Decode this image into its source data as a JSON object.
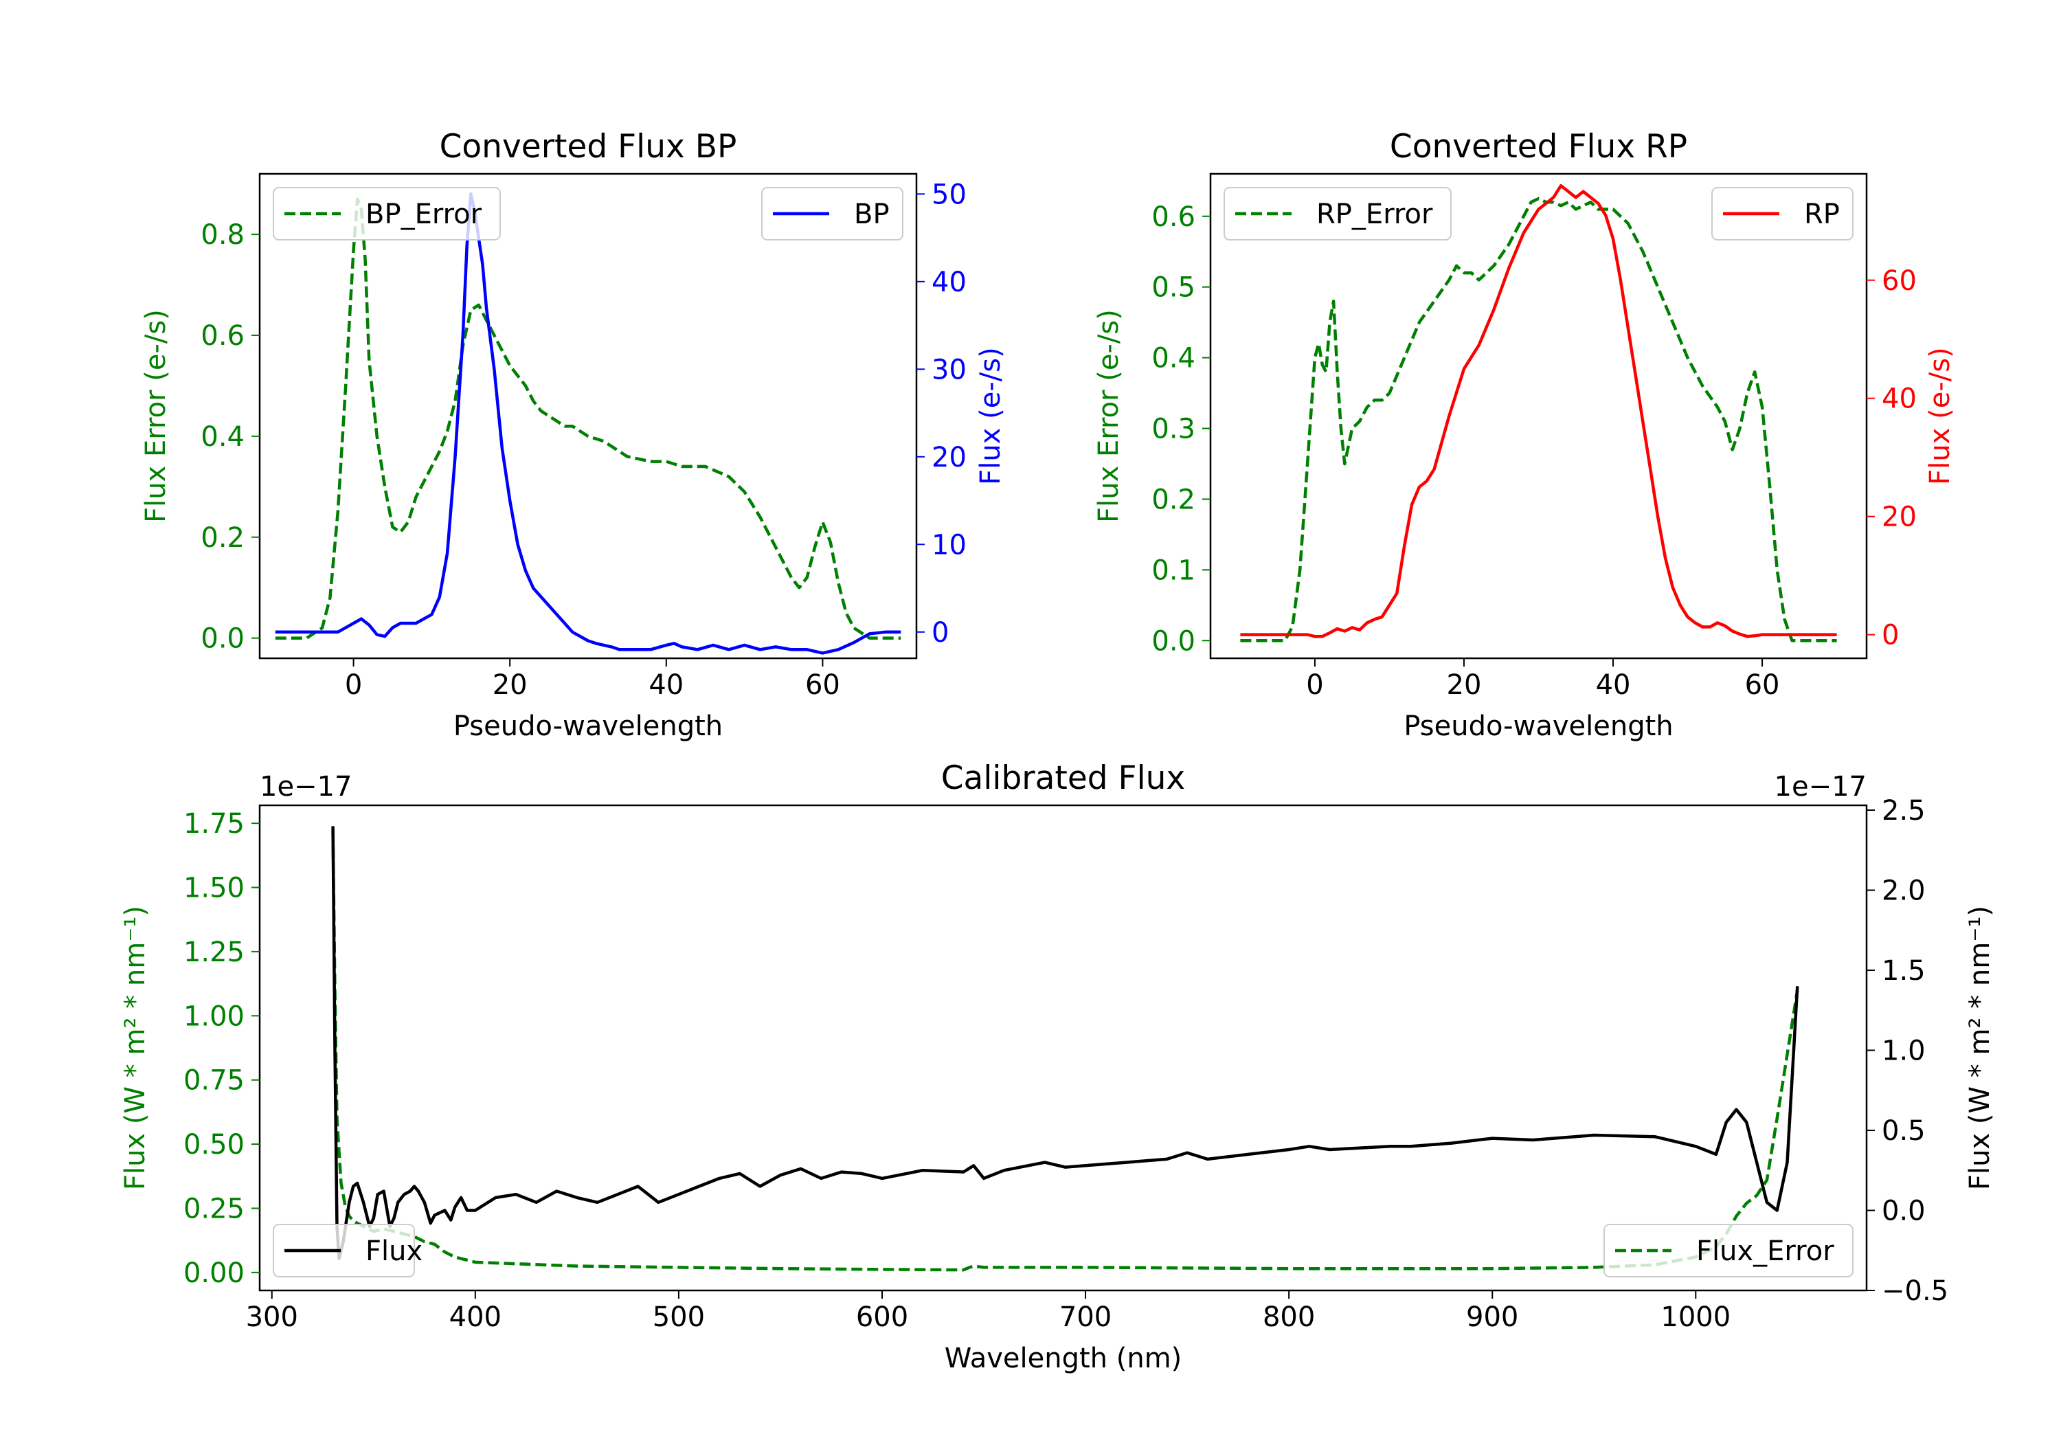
{
  "chart_data": [
    {
      "id": "bp",
      "type": "line",
      "title": "Converted Flux BP",
      "xlabel": "Pseudo-wavelength",
      "ylabel_left": "Flux Error (e-/s)",
      "ylabel_right": "Flux (e-/s)",
      "xlim": [
        -12,
        72
      ],
      "ylim_left": [
        -0.04,
        0.92
      ],
      "ylim_right": [
        -3,
        52.3
      ],
      "xticks": [
        0,
        20,
        40,
        60
      ],
      "yticks_left": [
        0.0,
        0.2,
        0.4,
        0.6,
        0.8
      ],
      "yticks_right": [
        0,
        10,
        20,
        30,
        40,
        50
      ],
      "ytick_labels_left": [
        "0.0",
        "0.2",
        "0.4",
        "0.6",
        "0.8"
      ],
      "ytick_labels_right": [
        "0",
        "10",
        "20",
        "30",
        "40",
        "50"
      ],
      "left_axis_color": "#008000",
      "right_axis_color": "#0000ff",
      "series": [
        {
          "name": "BP_Error",
          "axis": "left",
          "color": "#008000",
          "style": "dashed",
          "x": [
            -10,
            -8,
            -6,
            -4,
            -3,
            -2,
            -1,
            0,
            0.5,
            1,
            1.5,
            2,
            3,
            4,
            5,
            6,
            7,
            8,
            9,
            10,
            11,
            12,
            13,
            14,
            15,
            16,
            17,
            18,
            19,
            20,
            21,
            22,
            23,
            24,
            25,
            26,
            27,
            28,
            30,
            32,
            35,
            38,
            40,
            42,
            45,
            48,
            50,
            52,
            54,
            56,
            57,
            58,
            59,
            60,
            61,
            62,
            63,
            64,
            65,
            66,
            70
          ],
          "y": [
            0,
            0,
            0,
            0.02,
            0.08,
            0.25,
            0.5,
            0.77,
            0.87,
            0.85,
            0.75,
            0.55,
            0.4,
            0.3,
            0.22,
            0.21,
            0.23,
            0.28,
            0.31,
            0.34,
            0.37,
            0.41,
            0.47,
            0.58,
            0.65,
            0.66,
            0.63,
            0.6,
            0.57,
            0.54,
            0.52,
            0.5,
            0.47,
            0.45,
            0.44,
            0.43,
            0.42,
            0.42,
            0.4,
            0.39,
            0.36,
            0.35,
            0.35,
            0.34,
            0.34,
            0.32,
            0.29,
            0.24,
            0.18,
            0.12,
            0.1,
            0.12,
            0.18,
            0.23,
            0.19,
            0.11,
            0.05,
            0.02,
            0.01,
            0,
            0
          ]
        },
        {
          "name": "BP",
          "axis": "right",
          "color": "#0000ff",
          "style": "solid",
          "x": [
            -10,
            -5,
            -2,
            0,
            1,
            2,
            3,
            4,
            5,
            6,
            7,
            8,
            9,
            10,
            11,
            12,
            13,
            14,
            14.5,
            15,
            15.5,
            16,
            16.5,
            17,
            18,
            19,
            20,
            21,
            22,
            23,
            24,
            25,
            26,
            27,
            28,
            29,
            30,
            31,
            32,
            33,
            34,
            35,
            36,
            38,
            40,
            41,
            42,
            44,
            46,
            48,
            50,
            52,
            54,
            56,
            58,
            60,
            62,
            64,
            66,
            68,
            70
          ],
          "y": [
            0,
            0,
            0,
            1,
            1.5,
            0.8,
            -0.3,
            -0.5,
            0.5,
            1,
            1,
            1,
            1.5,
            2,
            4,
            9,
            20,
            34,
            44,
            50,
            48,
            45,
            42,
            37,
            30,
            21,
            15,
            10,
            7,
            5,
            4,
            3,
            2,
            1,
            0,
            -0.5,
            -1,
            -1.3,
            -1.5,
            -1.7,
            -2,
            -2,
            -2,
            -2,
            -1.5,
            -1.3,
            -1.7,
            -2,
            -1.5,
            -2,
            -1.5,
            -2,
            -1.7,
            -2,
            -2,
            -2.4,
            -2,
            -1.2,
            -0.2,
            0,
            0
          ]
        }
      ],
      "legend": [
        {
          "label": "BP_Error",
          "position": "upper-left"
        },
        {
          "label": "BP",
          "position": "upper-right"
        }
      ]
    },
    {
      "id": "rp",
      "type": "line",
      "title": "Converted Flux RP",
      "xlabel": "Pseudo-wavelength",
      "ylabel_left": "Flux Error (e-/s)",
      "ylabel_right": "Flux (e-/s)",
      "xlim": [
        -14,
        74
      ],
      "ylim_left": [
        -0.025,
        0.66
      ],
      "ylim_right": [
        -4,
        78
      ],
      "xticks": [
        0,
        20,
        40,
        60
      ],
      "yticks_left": [
        0.0,
        0.1,
        0.2,
        0.3,
        0.4,
        0.5,
        0.6
      ],
      "yticks_right": [
        0,
        20,
        40,
        60
      ],
      "ytick_labels_left": [
        "0.0",
        "0.1",
        "0.2",
        "0.3",
        "0.4",
        "0.5",
        "0.6"
      ],
      "ytick_labels_right": [
        "0",
        "20",
        "40",
        "60"
      ],
      "left_axis_color": "#008000",
      "right_axis_color": "#ff0000",
      "series": [
        {
          "name": "RP_Error",
          "axis": "left",
          "color": "#008000",
          "style": "dashed",
          "x": [
            -10,
            -6,
            -4,
            -3,
            -2,
            -1,
            0,
            0.5,
            1,
            1.5,
            2,
            2.5,
            3,
            3.5,
            4,
            5,
            6,
            7,
            8,
            9,
            10,
            12,
            14,
            16,
            18,
            19,
            20,
            21,
            22,
            24,
            26,
            28,
            29,
            30,
            31,
            32,
            33,
            34,
            35,
            36,
            37,
            38,
            40,
            42,
            44,
            46,
            48,
            50,
            52,
            54,
            55,
            56,
            57,
            58,
            59,
            60,
            61,
            62,
            63,
            64,
            65,
            70
          ],
          "y": [
            0,
            0,
            0,
            0.02,
            0.1,
            0.25,
            0.4,
            0.42,
            0.39,
            0.38,
            0.45,
            0.48,
            0.38,
            0.3,
            0.25,
            0.3,
            0.31,
            0.33,
            0.34,
            0.34,
            0.35,
            0.4,
            0.45,
            0.48,
            0.51,
            0.53,
            0.52,
            0.52,
            0.51,
            0.53,
            0.56,
            0.6,
            0.62,
            0.625,
            0.62,
            0.62,
            0.615,
            0.62,
            0.61,
            0.615,
            0.62,
            0.61,
            0.61,
            0.59,
            0.55,
            0.5,
            0.45,
            0.4,
            0.36,
            0.33,
            0.31,
            0.27,
            0.3,
            0.35,
            0.38,
            0.33,
            0.22,
            0.1,
            0.03,
            0,
            0,
            0
          ]
        },
        {
          "name": "RP",
          "axis": "right",
          "color": "#ff0000",
          "style": "solid",
          "x": [
            -10,
            -4,
            -1,
            0,
            1,
            2,
            3,
            4,
            5,
            6,
            7,
            8,
            9,
            10,
            11,
            12,
            13,
            14,
            15,
            16,
            18,
            20,
            22,
            24,
            26,
            28,
            30,
            32,
            33,
            34,
            35,
            36,
            37,
            38,
            39,
            40,
            41,
            42,
            43,
            44,
            45,
            46,
            47,
            48,
            49,
            50,
            51,
            52,
            53,
            54,
            55,
            56,
            57,
            58,
            59,
            60,
            61,
            62,
            64,
            66,
            70
          ],
          "y": [
            0,
            0,
            0,
            -0.3,
            -0.3,
            0.3,
            1,
            0.6,
            1.2,
            0.8,
            2,
            2.6,
            3,
            5,
            7,
            15,
            22,
            25,
            26,
            28,
            37,
            45,
            49,
            55,
            62,
            68,
            72,
            74,
            76,
            75,
            74,
            75,
            74,
            73,
            71,
            67,
            60,
            52,
            44,
            36,
            28,
            20,
            13,
            8,
            5,
            3,
            2,
            1.3,
            1.3,
            2,
            1.5,
            0.6,
            0.1,
            -0.3,
            -0.2,
            0,
            0,
            0,
            0,
            0,
            0
          ]
        }
      ],
      "legend": [
        {
          "label": "RP_Error",
          "position": "upper-left"
        },
        {
          "label": "RP",
          "position": "upper-right"
        }
      ]
    },
    {
      "id": "cal",
      "type": "line",
      "title": "Calibrated Flux",
      "xlabel": "Wavelength (nm)",
      "ylabel_left": "Flux (W * m² * nm⁻¹)",
      "ylabel_right": "Flux (W * m² * nm⁻¹)",
      "offset_left": "1e−17",
      "offset_right": "1e−17",
      "xlim": [
        294,
        1084
      ],
      "ylim_left": [
        -0.07,
        1.82
      ],
      "ylim_right": [
        -0.5,
        2.53
      ],
      "xticks": [
        300,
        400,
        500,
        600,
        700,
        800,
        900,
        1000
      ],
      "yticks_left": [
        0.0,
        0.25,
        0.5,
        0.75,
        1.0,
        1.25,
        1.5,
        1.75
      ],
      "yticks_right": [
        -0.5,
        0.0,
        0.5,
        1.0,
        1.5,
        2.0,
        2.5
      ],
      "ytick_labels_left": [
        "0.00",
        "0.25",
        "0.50",
        "0.75",
        "1.00",
        "1.25",
        "1.50",
        "1.75"
      ],
      "ytick_labels_right": [
        "−0.5",
        "0.0",
        "0.5",
        "1.0",
        "1.5",
        "2.0",
        "2.5"
      ],
      "left_axis_color": "#008000",
      "right_axis_color": "#000000",
      "series": [
        {
          "name": "Flux_Error",
          "axis": "left",
          "color": "#008000",
          "style": "dashed",
          "x": [
            330,
            331,
            332,
            334,
            336,
            338,
            340,
            345,
            350,
            355,
            360,
            365,
            370,
            375,
            380,
            385,
            390,
            400,
            450,
            500,
            550,
            600,
            640,
            643,
            645,
            650,
            700,
            800,
            900,
            950,
            980,
            1000,
            1005,
            1010,
            1015,
            1020,
            1025,
            1030,
            1035,
            1040,
            1045,
            1050
          ],
          "y": [
            1.72,
            1.1,
            0.6,
            0.35,
            0.26,
            0.22,
            0.2,
            0.18,
            0.16,
            0.17,
            0.16,
            0.15,
            0.14,
            0.12,
            0.11,
            0.08,
            0.06,
            0.04,
            0.025,
            0.02,
            0.015,
            0.012,
            0.01,
            0.02,
            0.025,
            0.02,
            0.02,
            0.015,
            0.015,
            0.02,
            0.03,
            0.06,
            0.08,
            0.1,
            0.15,
            0.22,
            0.27,
            0.3,
            0.36,
            0.6,
            0.85,
            1.1
          ]
        },
        {
          "name": "Flux",
          "axis": "right",
          "color": "#000000",
          "style": "solid",
          "x": [
            330,
            331,
            332,
            333,
            335,
            338,
            340,
            342,
            345,
            348,
            350,
            352,
            355,
            358,
            360,
            362,
            365,
            368,
            370,
            372,
            375,
            378,
            380,
            385,
            388,
            390,
            393,
            396,
            400,
            410,
            420,
            430,
            440,
            450,
            460,
            470,
            480,
            490,
            500,
            510,
            520,
            530,
            540,
            550,
            560,
            570,
            580,
            590,
            600,
            620,
            640,
            645,
            650,
            660,
            680,
            690,
            700,
            720,
            740,
            750,
            760,
            780,
            800,
            810,
            820,
            850,
            860,
            880,
            900,
            920,
            950,
            980,
            1000,
            1010,
            1015,
            1020,
            1025,
            1030,
            1035,
            1040,
            1045,
            1050
          ],
          "y": [
            2.4,
            1.0,
            -0.1,
            -0.3,
            -0.2,
            0.05,
            0.15,
            0.17,
            0.05,
            -0.1,
            -0.05,
            0.1,
            0.12,
            -0.1,
            -0.05,
            0.05,
            0.1,
            0.12,
            0.15,
            0.12,
            0.05,
            -0.08,
            -0.03,
            0.0,
            -0.06,
            0.02,
            0.08,
            0.0,
            0.0,
            0.08,
            0.1,
            0.05,
            0.12,
            0.08,
            0.05,
            0.1,
            0.15,
            0.05,
            0.1,
            0.15,
            0.2,
            0.23,
            0.15,
            0.22,
            0.26,
            0.2,
            0.24,
            0.23,
            0.2,
            0.25,
            0.24,
            0.28,
            0.2,
            0.25,
            0.3,
            0.27,
            0.28,
            0.3,
            0.32,
            0.36,
            0.32,
            0.35,
            0.38,
            0.4,
            0.38,
            0.4,
            0.4,
            0.42,
            0.45,
            0.44,
            0.47,
            0.46,
            0.4,
            0.35,
            0.55,
            0.63,
            0.55,
            0.3,
            0.05,
            0.0,
            0.3,
            1.4
          ]
        }
      ],
      "legend": [
        {
          "label": "Flux",
          "position": "lower-left"
        },
        {
          "label": "Flux_Error",
          "position": "lower-right"
        }
      ]
    }
  ]
}
